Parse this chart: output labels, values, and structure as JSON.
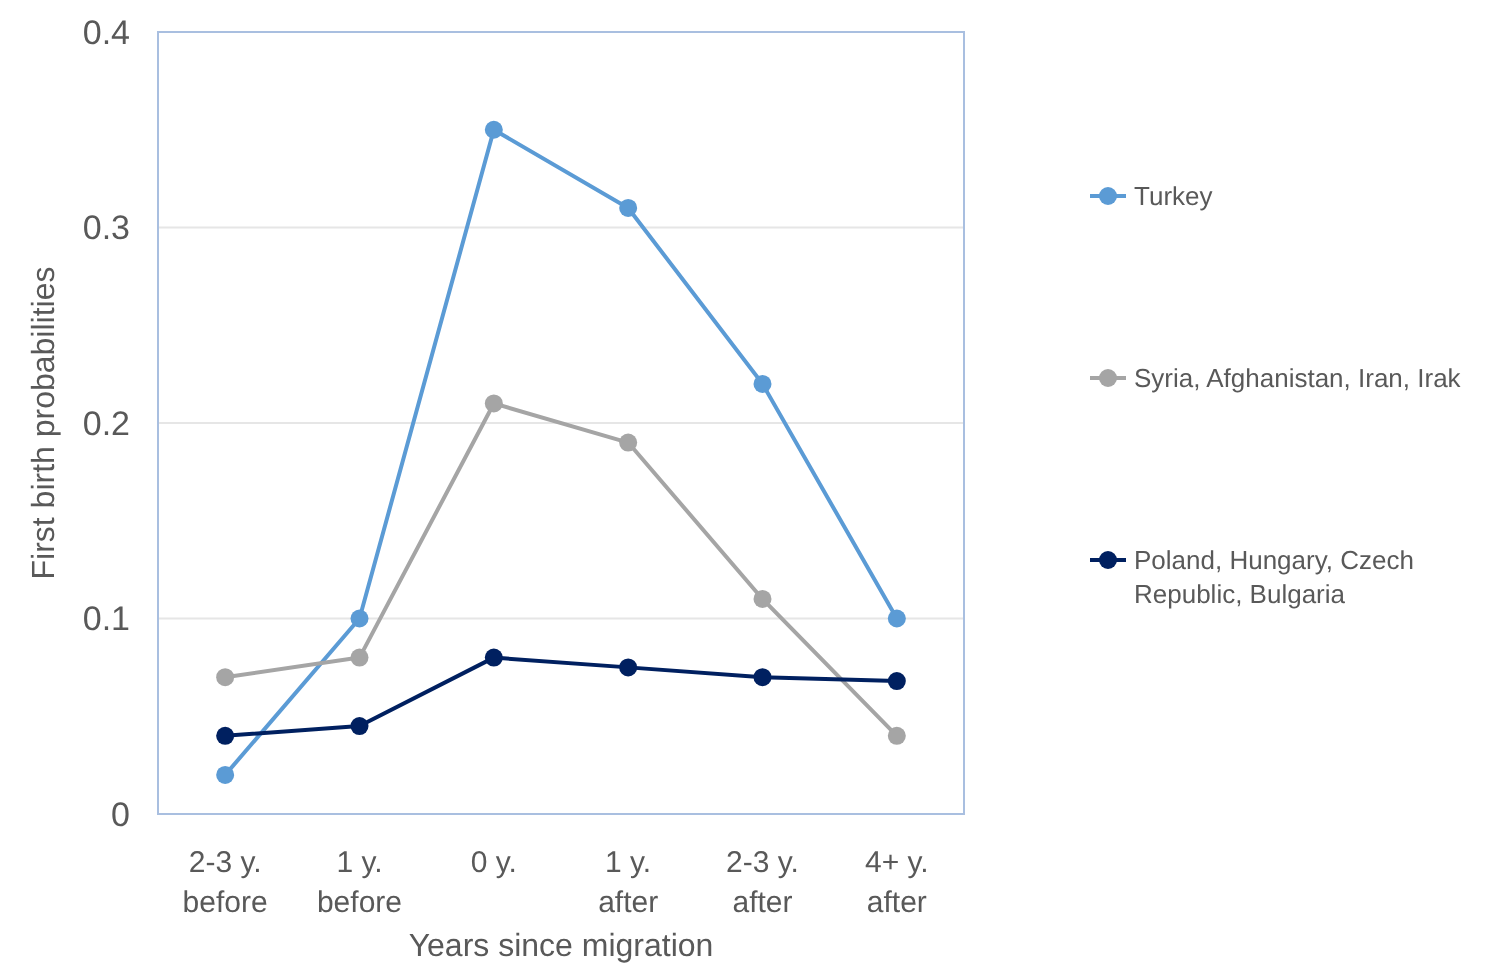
{
  "chart_data": {
    "type": "line",
    "xlabel": "Years since migration",
    "ylabel": "First birth probabilities",
    "categories": [
      "2-3 y.\nbefore",
      "1 y.\nbefore",
      "0 y.",
      "1 y.\nafter",
      "2-3 y.\nafter",
      "4+ y.\nafter"
    ],
    "series": [
      {
        "name": "Turkey",
        "color": "#5b9bd5",
        "values": [
          0.02,
          0.1,
          0.35,
          0.31,
          0.22,
          0.1
        ]
      },
      {
        "name": "Syria, Afghanistan, Iran, Irak",
        "color": "#a5a5a5",
        "values": [
          0.07,
          0.08,
          0.21,
          0.19,
          0.11,
          0.04
        ]
      },
      {
        "name": "Poland, Hungary, Czech Republic, Bulgaria",
        "color": "#002060",
        "values": [
          0.04,
          0.045,
          0.08,
          0.075,
          0.07,
          0.068
        ]
      }
    ],
    "ylim": [
      0,
      0.4
    ],
    "yticks": [
      0,
      0.1,
      0.2,
      0.3,
      0.4
    ],
    "grid": "y",
    "legend": "right",
    "marker": "circle",
    "line_style": "solid"
  }
}
